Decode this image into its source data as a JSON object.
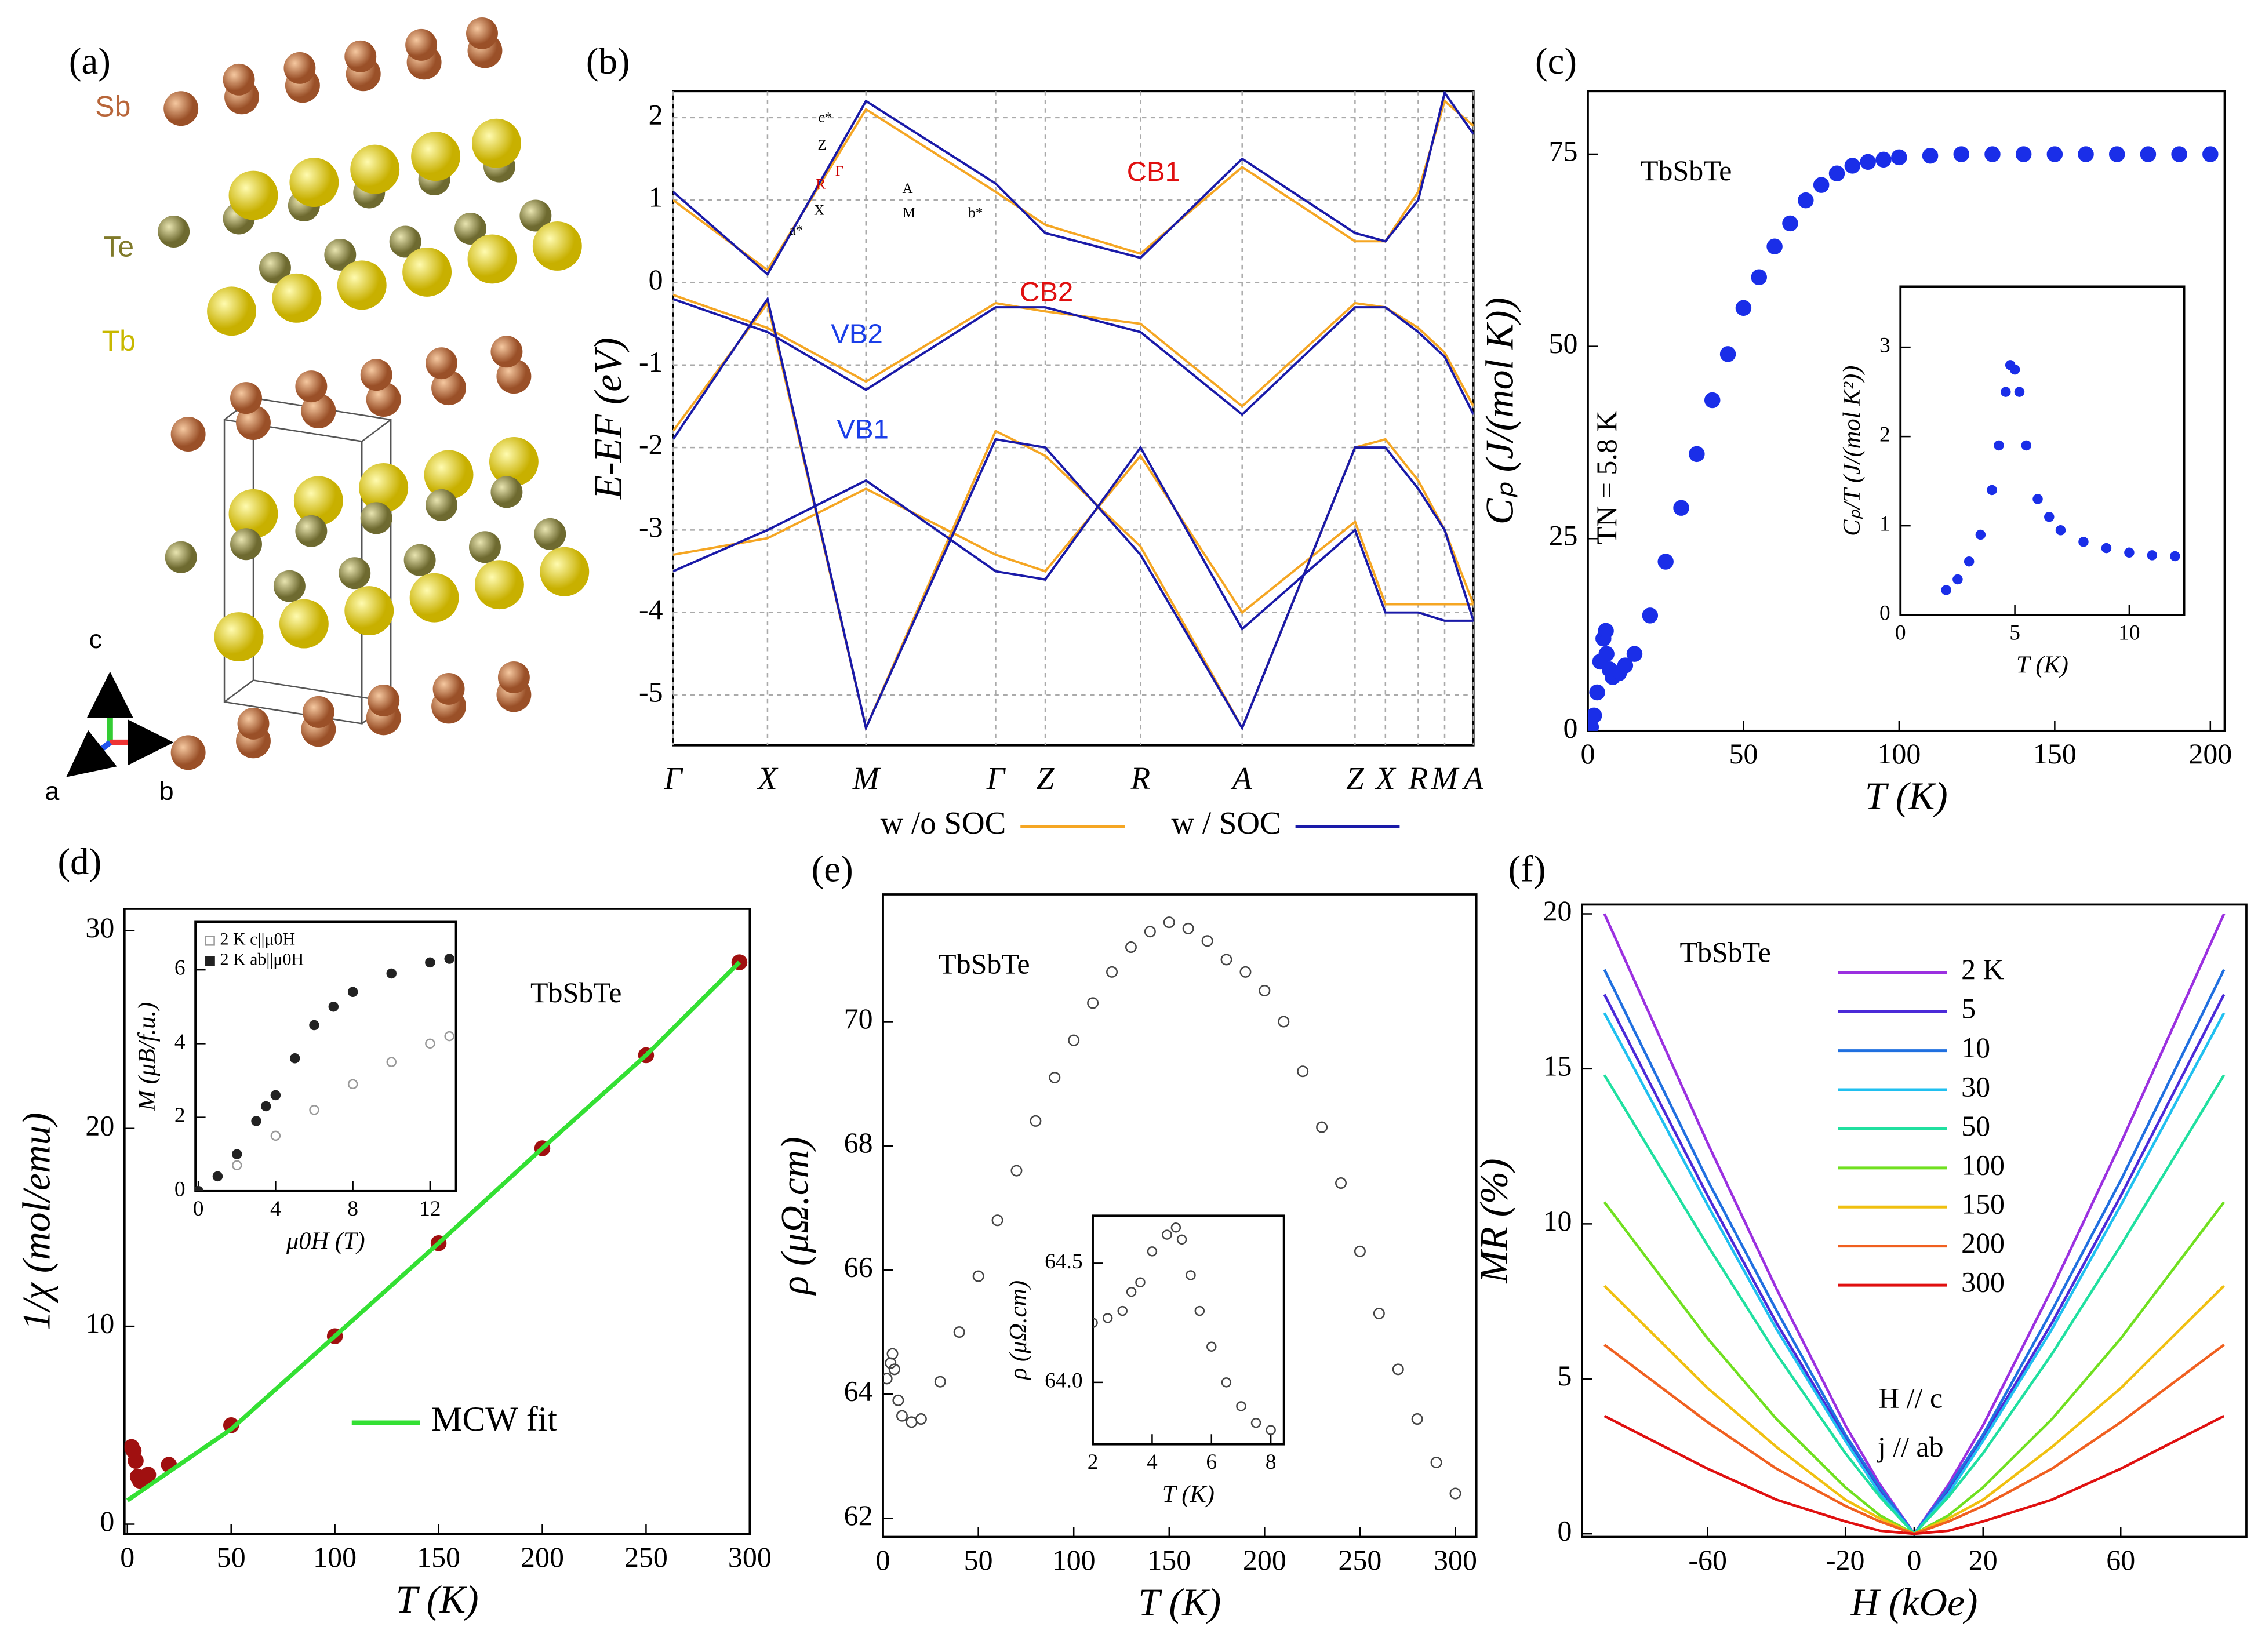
{
  "panel_labels": [
    "(a)",
    "(b)",
    "(c)",
    "(d)",
    "(e)",
    "(f)"
  ],
  "structure": {
    "atoms": [
      "Sb",
      "Te",
      "Tb"
    ],
    "axes": [
      "c",
      "a",
      "b"
    ]
  },
  "chart_data": [
    {
      "type": "line",
      "ylabel": "E-EF (eV)",
      "x": [
        0,
        0.118,
        0.241,
        0.403,
        0.465,
        0.584,
        0.711,
        0.852,
        0.89,
        0.931,
        0.964,
        1.0
      ],
      "xlim": [
        0,
        1
      ],
      "ylim": [
        -5.61,
        2.32
      ],
      "xticks": [
        {
          "value": 0,
          "label": "Γ"
        },
        {
          "value": 0.118,
          "label": "X"
        },
        {
          "value": 0.241,
          "label": "M"
        },
        {
          "value": 0.403,
          "label": "Γ"
        },
        {
          "value": 0.465,
          "label": "Z"
        },
        {
          "value": 0.584,
          "label": "R"
        },
        {
          "value": 0.711,
          "label": "A"
        },
        {
          "value": 0.852,
          "label": "Z"
        },
        {
          "value": 0.89,
          "label": "X"
        },
        {
          "value": 0.931,
          "label": "R"
        },
        {
          "value": 0.964,
          "label": "M"
        },
        {
          "value": 1.0,
          "label": "A"
        }
      ],
      "yticks": [
        -5,
        -4,
        -3,
        -2,
        -1,
        0,
        1,
        2
      ],
      "grid": true,
      "legend": "bottom",
      "series": [
        {
          "name": "w /o SOC",
          "color": "#f5a623",
          "style": "line",
          "values": [
            [
              -0.15,
              -0.55,
              -1.2,
              -0.25,
              -0.35,
              -0.5,
              -1.5,
              -0.25,
              -0.3,
              -0.55,
              -0.85,
              -1.5
            ],
            [
              -1.8,
              -0.25,
              -5.4,
              -1.8,
              -2.1,
              -3.2,
              -5.4,
              -2.0,
              -1.9,
              -2.4,
              -3.0,
              -3.9
            ],
            [
              1.0,
              0.15,
              2.1,
              1.1,
              0.7,
              0.35,
              1.4,
              0.5,
              0.5,
              1.1,
              2.2,
              1.9
            ],
            [
              -3.3,
              -3.1,
              -2.5,
              -3.3,
              -3.5,
              -2.1,
              -4.0,
              -2.9,
              -3.9,
              -3.9,
              -3.9,
              -3.9
            ]
          ]
        },
        {
          "name": "w / SOC",
          "color": "#1a1aa8",
          "style": "line",
          "values": [
            [
              -0.2,
              -0.6,
              -1.3,
              -0.3,
              -0.3,
              -0.6,
              -1.6,
              -0.3,
              -0.3,
              -0.6,
              -0.9,
              -1.6
            ],
            [
              -1.9,
              -0.2,
              -5.4,
              -1.9,
              -2.0,
              -3.3,
              -5.4,
              -2.0,
              -2.0,
              -2.5,
              -3.0,
              -4.1
            ],
            [
              1.1,
              0.1,
              2.2,
              1.2,
              0.6,
              0.3,
              1.5,
              0.6,
              0.5,
              1.0,
              2.3,
              1.8
            ],
            [
              -3.5,
              -3.0,
              -2.4,
              -3.5,
              -3.6,
              -2.0,
              -4.2,
              -3.0,
              -4.0,
              -4.0,
              -4.1,
              -4.1
            ]
          ]
        }
      ],
      "annotations": [
        "CB1",
        "CB2",
        "VB1",
        "VB2"
      ],
      "inset_labels": [
        "c*",
        "Z",
        "Γ",
        "R",
        "A",
        "X",
        "M",
        "a*",
        "b*"
      ]
    },
    {
      "type": "scatter",
      "xlabel": "T (K)",
      "ylabel": "Cₚ (J/(mol K))",
      "xlim": [
        0,
        204.6
      ],
      "ylim": [
        0,
        83.2
      ],
      "xticks": [
        0,
        50,
        100,
        150,
        200
      ],
      "yticks": [
        0,
        25,
        50,
        75
      ],
      "series": [
        {
          "color": "#1a2ee8",
          "style": "markers",
          "x": [
            1,
            2,
            3,
            4,
            5,
            5.8,
            6,
            7,
            8,
            10,
            12,
            15,
            20,
            25,
            30,
            35,
            40,
            45,
            50,
            55,
            60,
            65,
            70,
            75,
            80,
            85,
            90,
            95,
            100,
            110,
            120,
            130,
            140,
            150,
            160,
            170,
            180,
            190,
            200
          ],
          "values": [
            0.5,
            2,
            5,
            9,
            12,
            13,
            10,
            8,
            7,
            7.5,
            8.5,
            10,
            15,
            22,
            29,
            36,
            43,
            49,
            55,
            59,
            63,
            66,
            69,
            71,
            72.5,
            73.5,
            74,
            74.3,
            74.6,
            74.8,
            75,
            75,
            75,
            75,
            75,
            75,
            75,
            75,
            75
          ]
        }
      ],
      "annotations": [
        "TbSbTe",
        "TN = 5.8 K"
      ]
    },
    {
      "type": "scatter",
      "xlabel": "T (K)",
      "ylabel": "Cₚ/T (J/(mol K²))",
      "xlim": [
        0,
        12.4
      ],
      "ylim": [
        0,
        3.68
      ],
      "xticks": [
        0,
        5,
        10
      ],
      "yticks": [
        0,
        1,
        2,
        3
      ],
      "series": [
        {
          "color": "#1a2ee8",
          "style": "markers",
          "x": [
            2,
            2.5,
            3,
            3.5,
            4,
            4.3,
            4.6,
            4.8,
            5,
            5.2,
            5.5,
            6,
            6.5,
            7,
            8,
            9,
            10,
            11,
            12
          ],
          "values": [
            0.28,
            0.4,
            0.6,
            0.9,
            1.4,
            1.9,
            2.5,
            2.8,
            2.75,
            2.5,
            1.9,
            1.3,
            1.1,
            0.95,
            0.82,
            0.75,
            0.7,
            0.67,
            0.66
          ]
        }
      ]
    },
    {
      "type": "line",
      "xlabel": "T (K)",
      "ylabel": "1/χ (mol/emu)",
      "xlim": [
        -1.4,
        300
      ],
      "ylim": [
        -0.5,
        31.1
      ],
      "xticks": [
        0,
        50,
        100,
        150,
        200,
        250,
        300
      ],
      "yticks": [
        0,
        10,
        20,
        30
      ],
      "legend": "lower center",
      "series": [
        {
          "color": "#a01010",
          "style": "markers",
          "x": [
            2,
            3,
            4,
            5,
            6,
            8,
            10,
            20,
            50,
            100,
            150,
            200,
            250,
            295
          ],
          "values": [
            3.9,
            3.7,
            3.2,
            2.4,
            2.2,
            2.3,
            2.5,
            3.0,
            5.0,
            9.5,
            14.2,
            19.0,
            23.7,
            28.4
          ]
        },
        {
          "name": "MCW fit",
          "color": "#33e033",
          "style": "line",
          "x": [
            0,
            50,
            100,
            150,
            200,
            250,
            295
          ],
          "values": [
            1.2,
            4.8,
            9.5,
            14.2,
            19.0,
            23.7,
            28.4
          ]
        }
      ],
      "annotations": [
        "TbSbTe"
      ]
    },
    {
      "type": "line",
      "xlabel": "μ0H (T)",
      "ylabel": "M (μB/f.u.)",
      "xlim": [
        -0.15,
        13.34
      ],
      "ylim": [
        0,
        7.3
      ],
      "xticks": [
        0,
        4,
        8,
        12
      ],
      "yticks": [
        0,
        2,
        4,
        6
      ],
      "legend": "upper left",
      "series": [
        {
          "name": "2 K c||μ0H",
          "color": "#999999",
          "style": "open-markers",
          "x": [
            0,
            2,
            4,
            6,
            8,
            10,
            12,
            13
          ],
          "values": [
            0,
            0.7,
            1.5,
            2.2,
            2.9,
            3.5,
            4.0,
            4.2
          ]
        },
        {
          "name": "2 K ab||μ0H",
          "color": "#222222",
          "style": "markers",
          "x": [
            0,
            1,
            2,
            3,
            3.5,
            4,
            5,
            6,
            7,
            8,
            10,
            12,
            13
          ],
          "values": [
            0,
            0.4,
            1.0,
            1.9,
            2.3,
            2.6,
            3.6,
            4.5,
            5.0,
            5.4,
            5.9,
            6.2,
            6.3
          ]
        }
      ]
    },
    {
      "type": "scatter",
      "xlabel": "T (K)",
      "ylabel": "ρ (μΩ.cm)",
      "xlim": [
        0,
        311
      ],
      "ylim": [
        61.7,
        72.05
      ],
      "xticks": [
        0,
        50,
        100,
        150,
        200,
        250,
        300
      ],
      "yticks": [
        62,
        64,
        66,
        68,
        70
      ],
      "series": [
        {
          "color": "#444444",
          "style": "open-markers",
          "x": [
            2,
            4,
            5,
            6,
            8,
            10,
            15,
            20,
            30,
            40,
            50,
            60,
            70,
            80,
            90,
            100,
            110,
            120,
            130,
            140,
            150,
            160,
            170,
            180,
            190,
            200,
            210,
            220,
            230,
            240,
            250,
            260,
            270,
            280,
            290,
            300
          ],
          "values": [
            64.25,
            64.5,
            64.65,
            64.4,
            63.9,
            63.65,
            63.55,
            63.6,
            64.2,
            65.0,
            65.9,
            66.8,
            67.6,
            68.4,
            69.1,
            69.7,
            70.3,
            70.8,
            71.2,
            71.45,
            71.6,
            71.5,
            71.3,
            71.0,
            70.8,
            70.5,
            70.0,
            69.2,
            68.3,
            67.4,
            66.3,
            65.3,
            64.4,
            63.6,
            62.9,
            62.4
          ]
        }
      ],
      "annotations": [
        "TbSbTe"
      ]
    },
    {
      "type": "scatter",
      "xlabel": "T (K)",
      "ylabel": "ρ (μΩ.cm)",
      "xlim": [
        2,
        8.44
      ],
      "ylim": [
        63.74,
        64.7
      ],
      "xticks": [
        2,
        4,
        6,
        8
      ],
      "yticks": [
        {
          "value": 64,
          "label": "64.0"
        },
        64.5
      ],
      "series": [
        {
          "color": "#444444",
          "style": "open-markers",
          "x": [
            2,
            2.5,
            3,
            3.3,
            3.6,
            4,
            4.5,
            4.8,
            5,
            5.3,
            5.6,
            6,
            6.5,
            7,
            7.5,
            8
          ],
          "values": [
            64.25,
            64.27,
            64.3,
            64.38,
            64.42,
            64.55,
            64.62,
            64.65,
            64.6,
            64.45,
            64.3,
            64.15,
            64.0,
            63.9,
            63.83,
            63.8
          ]
        }
      ]
    },
    {
      "type": "line",
      "xlabel": "H (kOe)",
      "ylabel": "MR (%)",
      "xlim": [
        -96.5,
        96.5
      ],
      "ylim": [
        -0.1,
        20.3
      ],
      "xticks": [
        -60,
        -20,
        0,
        20,
        60
      ],
      "yticks": [
        0,
        5,
        10,
        15,
        20
      ],
      "legend": "upper right",
      "x": [
        -90,
        -60,
        -40,
        -20,
        -10,
        0,
        10,
        20,
        40,
        60,
        90
      ],
      "series": [
        {
          "name": "2 K",
          "color": "#9b30e0",
          "style": "line",
          "values": [
            20,
            12.6,
            7.9,
            3.5,
            1.6,
            0,
            1.6,
            3.5,
            7.9,
            12.6,
            20
          ]
        },
        {
          "name": "5",
          "color": "#4b2ad8",
          "style": "line",
          "values": [
            17.4,
            10.9,
            6.8,
            3.1,
            1.4,
            0,
            1.4,
            3.1,
            6.8,
            10.9,
            17.4
          ]
        },
        {
          "name": "10",
          "color": "#2070e0",
          "style": "line",
          "values": [
            18.2,
            11.4,
            7.2,
            3.2,
            1.5,
            0,
            1.5,
            3.2,
            7.2,
            11.4,
            18.2
          ]
        },
        {
          "name": "30",
          "color": "#20c0f0",
          "style": "line",
          "values": [
            16.8,
            10.6,
            6.6,
            3.0,
            1.3,
            0,
            1.3,
            3.0,
            6.6,
            10.6,
            16.8
          ]
        },
        {
          "name": "50",
          "color": "#20e0a0",
          "style": "line",
          "values": [
            14.8,
            9.3,
            5.8,
            2.6,
            1.2,
            0,
            1.2,
            2.6,
            5.8,
            9.3,
            14.8
          ]
        },
        {
          "name": "100",
          "color": "#70e020",
          "style": "line",
          "values": [
            10.7,
            6.3,
            3.7,
            1.5,
            0.6,
            0,
            0.6,
            1.5,
            3.7,
            6.3,
            10.7
          ]
        },
        {
          "name": "150",
          "color": "#f0c010",
          "style": "line",
          "values": [
            8.0,
            4.7,
            2.8,
            1.1,
            0.5,
            0,
            0.5,
            1.1,
            2.8,
            4.7,
            8.0
          ]
        },
        {
          "name": "200",
          "color": "#f06020",
          "style": "line",
          "values": [
            6.1,
            3.6,
            2.1,
            0.9,
            0.4,
            0,
            0.4,
            0.9,
            2.1,
            3.6,
            6.1
          ]
        },
        {
          "name": "300",
          "color": "#e01010",
          "style": "line",
          "values": [
            3.8,
            2.1,
            1.1,
            0.4,
            0.1,
            0,
            0.1,
            0.4,
            1.1,
            2.1,
            3.8
          ]
        }
      ],
      "annotations": [
        "TbSbTe",
        "H // c",
        "j // ab"
      ]
    }
  ]
}
